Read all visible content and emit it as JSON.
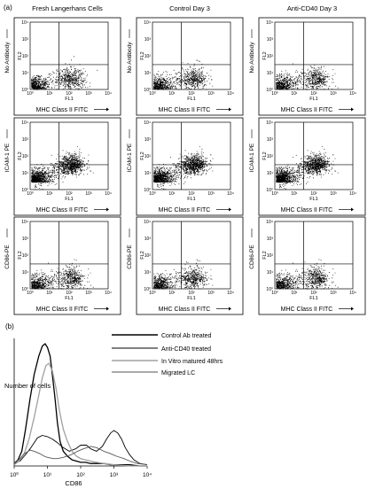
{
  "panel_a_label": "(a)",
  "panel_b_label": "(b)",
  "column_titles": [
    "Fresh Langerhans Cells",
    "Control Day 3",
    "Anti-CD40 Day 3"
  ],
  "row_side_labels": [
    "No Antibody",
    "ICAM-1 PE",
    "CD86-PE"
  ],
  "dot_plot_x_title": "MHC Class II FITC",
  "dot_plot_inner_x": "FL1",
  "dot_plot_inner_y": "FL2",
  "dot_plot_tick_labels": [
    "10⁰",
    "10¹",
    "10²",
    "10³",
    "10⁴"
  ],
  "chart_data": [
    {
      "type": "scatter",
      "title": "",
      "xlabel": "MHC Class II FITC",
      "ylabel": "FL2",
      "x_scale": "log",
      "y_scale": "log",
      "xlim": [
        1,
        10000
      ],
      "ylim": [
        1,
        10000
      ],
      "grid": false,
      "columns": [
        "Fresh Langerhans Cells",
        "Control Day 3",
        "Anti-CD40 Day 3"
      ],
      "rows": [
        "No Antibody",
        "ICAM-1 PE",
        "CD86-PE"
      ],
      "quadrant_gate": [
        30,
        30
      ],
      "description_of_populations": "Dense events near origin and MHC Class II positive cluster around FL1 10^2-10^3 in every panel"
    },
    {
      "type": "line",
      "title": "",
      "xlabel": "CD86",
      "ylabel": "Number of cells",
      "x_scale": "log",
      "xlim": [
        1,
        10000
      ],
      "x_ticks": [
        "10⁰",
        "10¹",
        "10²",
        "10³",
        "10⁴"
      ],
      "legend_position": "top-right",
      "series": [
        {
          "name": "Control Ab treated",
          "color": "#000000",
          "x": [
            1,
            1.3,
            1.7,
            2.2,
            3,
            4,
            5.5,
            7,
            8.5,
            10,
            12,
            14,
            17,
            20,
            24,
            30,
            40,
            55,
            75,
            100,
            140,
            200,
            300,
            500,
            800,
            1500,
            3000,
            6000,
            10000
          ],
          "y": [
            0.02,
            0.05,
            0.12,
            0.3,
            0.55,
            0.75,
            0.9,
            0.98,
            1.0,
            0.97,
            0.9,
            0.75,
            0.55,
            0.35,
            0.2,
            0.12,
            0.08,
            0.05,
            0.04,
            0.03,
            0.03,
            0.02,
            0.02,
            0.02,
            0.01,
            0.01,
            0.01,
            0.0,
            0.0
          ]
        },
        {
          "name": "Anti-CD40 treated",
          "color": "#000000",
          "x": [
            1,
            1.5,
            2,
            3,
            4,
            5,
            7,
            10,
            14,
            20,
            30,
            45,
            70,
            100,
            150,
            200,
            300,
            450,
            600,
            800,
            1000,
            1300,
            1700,
            2200,
            3000,
            4000,
            6000,
            10000
          ],
          "y": [
            0.02,
            0.04,
            0.08,
            0.14,
            0.19,
            0.23,
            0.25,
            0.24,
            0.22,
            0.19,
            0.15,
            0.12,
            0.14,
            0.17,
            0.17,
            0.14,
            0.12,
            0.16,
            0.22,
            0.27,
            0.29,
            0.27,
            0.22,
            0.15,
            0.09,
            0.05,
            0.02,
            0.01
          ]
        },
        {
          "name": "In Vitro matured 48hrs",
          "color": "#a0a0a0",
          "x": [
            1,
            1.4,
            2,
            2.8,
            4,
            5.5,
            7,
            9,
            11,
            14,
            18,
            23,
            30,
            40,
            55,
            75,
            100,
            140,
            200,
            300,
            500,
            1000,
            3000,
            10000
          ],
          "y": [
            0.01,
            0.04,
            0.1,
            0.22,
            0.4,
            0.58,
            0.72,
            0.82,
            0.84,
            0.78,
            0.64,
            0.45,
            0.3,
            0.2,
            0.12,
            0.08,
            0.06,
            0.05,
            0.04,
            0.03,
            0.02,
            0.01,
            0.0,
            0.0
          ]
        },
        {
          "name": "Migrated LC",
          "color": "#555555",
          "x": [
            1,
            1.5,
            2,
            3,
            4,
            6,
            8,
            10,
            15,
            20,
            30,
            50,
            80,
            120,
            200,
            300,
            500,
            800,
            1200,
            2000,
            3000,
            5000,
            10000
          ],
          "y": [
            0.02,
            0.06,
            0.1,
            0.13,
            0.12,
            0.1,
            0.08,
            0.07,
            0.06,
            0.06,
            0.07,
            0.09,
            0.12,
            0.14,
            0.16,
            0.15,
            0.12,
            0.1,
            0.08,
            0.06,
            0.04,
            0.02,
            0.01
          ]
        }
      ]
    }
  ],
  "histogram_legend": [
    "Control Ab treated",
    "Anti-CD40 treated",
    "In Vitro matured 48hrs",
    "Migrated LC"
  ],
  "histogram_xlabel": "CD86",
  "histogram_ylabel": "Number of cells"
}
